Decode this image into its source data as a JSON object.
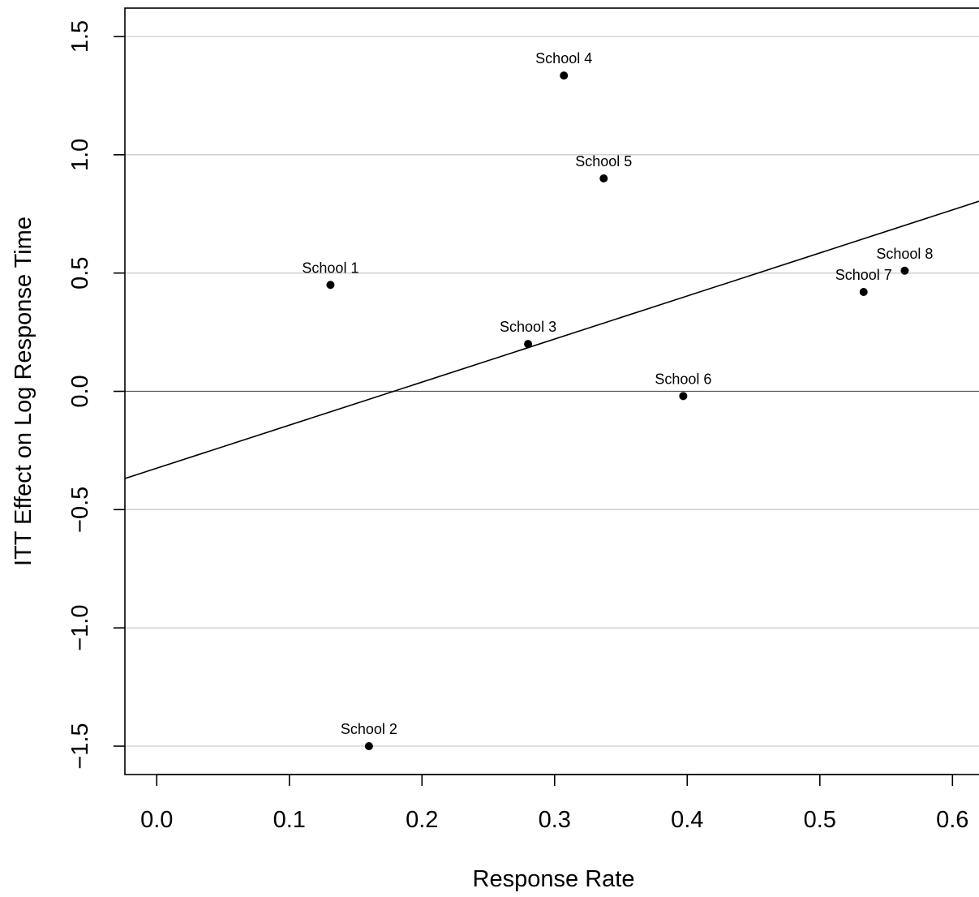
{
  "chart_data": {
    "type": "scatter",
    "xlabel": "Response Rate",
    "ylabel": "ITT Effect on Log Response Time",
    "xlim": [
      -0.024,
      0.62
    ],
    "ylim": [
      -1.62,
      1.62
    ],
    "xticks": [
      0.0,
      0.1,
      0.2,
      0.3,
      0.4,
      0.5,
      0.6
    ],
    "xtick_labels": [
      "0.0",
      "0.1",
      "0.2",
      "0.3",
      "0.4",
      "0.5",
      "0.6"
    ],
    "yticks": [
      1.5,
      1.0,
      0.5,
      0.0,
      -0.5,
      -1.0,
      -1.5
    ],
    "ytick_labels": [
      "1.5",
      "1.0",
      "0.5",
      "0.0",
      "−0.5",
      "−1.0",
      "−1.5"
    ],
    "grid": "horizontal",
    "zero_line": true,
    "points": [
      {
        "label": "School 1",
        "x": 0.131,
        "y": 0.45
      },
      {
        "label": "School 2",
        "x": 0.16,
        "y": -1.5
      },
      {
        "label": "School 3",
        "x": 0.28,
        "y": 0.2
      },
      {
        "label": "School 4",
        "x": 0.307,
        "y": 1.335
      },
      {
        "label": "School 5",
        "x": 0.337,
        "y": 0.9
      },
      {
        "label": "School 6",
        "x": 0.397,
        "y": -0.02
      },
      {
        "label": "School 7",
        "x": 0.533,
        "y": 0.42
      },
      {
        "label": "School 8",
        "x": 0.564,
        "y": 0.51
      }
    ],
    "fit_line": {
      "intercept": -0.325,
      "slope": 1.82
    },
    "colors": {
      "points": "#000000",
      "grid": "#cccccc",
      "fit": "#000000",
      "zero": "#555555"
    }
  }
}
